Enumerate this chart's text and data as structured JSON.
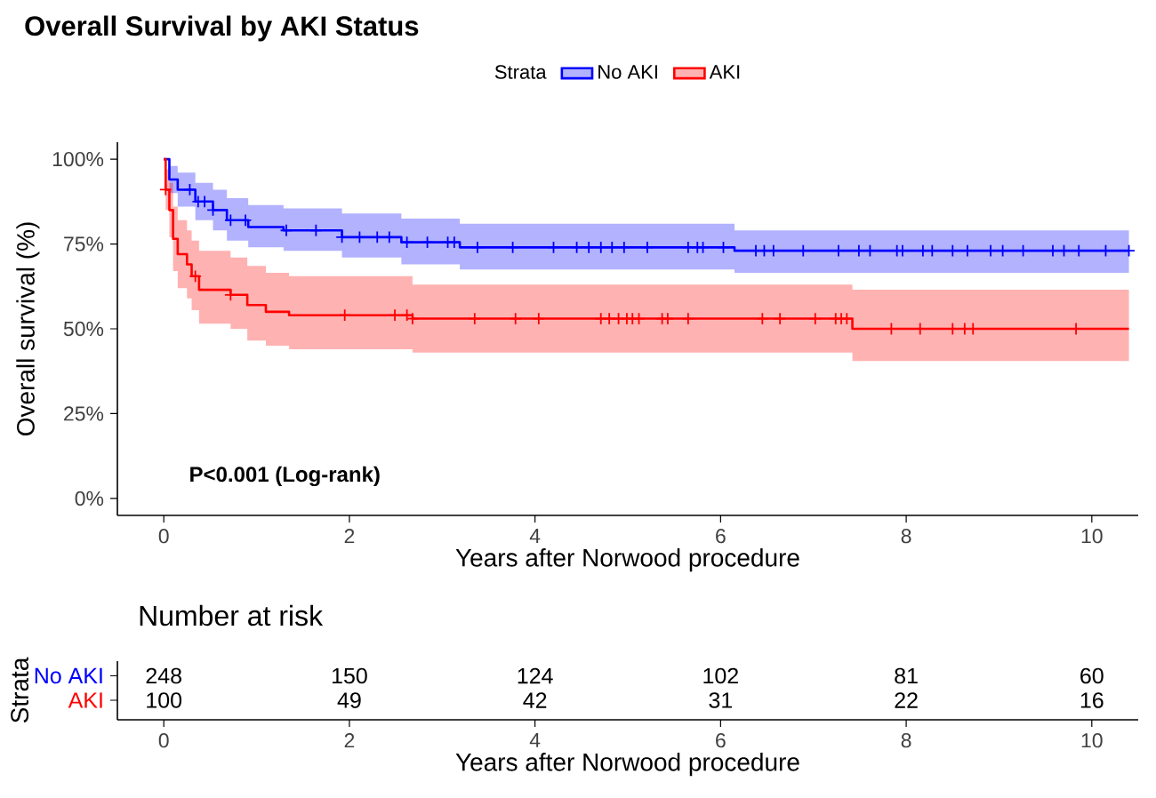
{
  "chart_data": [
    {
      "type": "step",
      "title": "Overall Survival by AKI Status",
      "xlabel": "Years after Norwood procedure",
      "ylabel": "Overall survival (%)",
      "legend_title": "Strata",
      "legend": "top",
      "xlim": [
        -0.5,
        10.5
      ],
      "xticks": [
        0,
        2,
        4,
        6,
        8,
        10
      ],
      "ylim": [
        -5,
        105
      ],
      "yticks": [
        {
          "value": 0,
          "label": "0%"
        },
        {
          "value": 25,
          "label": "25%"
        },
        {
          "value": 50,
          "label": "50%"
        },
        {
          "value": 75,
          "label": "75%"
        },
        {
          "value": 100,
          "label": "100%"
        }
      ],
      "annotations": [
        "P<0.001 (Log-rank)"
      ],
      "series": [
        {
          "name": "No AKI",
          "color": "#0000ff",
          "x": [
            0,
            0.06,
            0.15,
            0.34,
            0.53,
            0.68,
            0.91,
            1.29,
            1.92,
            2.56,
            3.19,
            6.15,
            10.4
          ],
          "values": [
            100,
            94,
            91,
            87.5,
            85,
            82,
            80,
            79,
            77,
            75.5,
            74,
            73,
            73
          ],
          "upper": [
            100,
            98,
            96,
            93,
            91,
            88.5,
            86.5,
            85.5,
            84,
            82.5,
            81,
            79,
            79
          ],
          "lower": [
            100,
            90,
            86,
            82,
            79,
            76,
            74,
            73,
            71,
            69,
            67.5,
            66.5,
            66.5
          ]
        },
        {
          "name": "AKI",
          "color": "#ff0000",
          "x": [
            0,
            0.02,
            0.06,
            0.1,
            0.15,
            0.25,
            0.3,
            0.38,
            0.72,
            0.9,
            1.1,
            1.35,
            2.68,
            7.42,
            10.4
          ],
          "values": [
            100,
            91,
            85,
            76.5,
            72,
            69,
            65.5,
            61.5,
            60,
            57,
            55,
            54,
            53,
            50,
            50
          ],
          "upper": [
            100,
            97,
            93,
            86,
            82,
            79,
            76,
            73,
            71,
            68.5,
            66.5,
            65.5,
            63,
            61.5,
            61.5
          ],
          "lower": [
            100,
            85,
            77,
            67,
            62,
            59,
            55.5,
            51.5,
            50,
            46.5,
            45,
            44,
            43,
            40.5,
            40.5
          ]
        },
        {
          "type": "scatter",
          "marker": "cross",
          "color": "#0000ff",
          "x": [
            0.28,
            0.37,
            0.44,
            0.53,
            0.72,
            0.88,
            1.32,
            1.64,
            1.92,
            2.11,
            2.3,
            2.43,
            2.62,
            2.84,
            3.06,
            3.13,
            3.38,
            3.76,
            4.2,
            4.45,
            4.58,
            4.71,
            4.83,
            4.96,
            5.21,
            5.65,
            5.75,
            5.81,
            6.03,
            6.38,
            6.47,
            6.57,
            6.89,
            7.27,
            7.49,
            7.61,
            7.9,
            7.96,
            8.18,
            8.28,
            8.5,
            8.66,
            8.91,
            9.04,
            9.26,
            9.58,
            9.7,
            9.86,
            10.15,
            10.4
          ],
          "values": [
            91,
            87.5,
            87.5,
            85,
            82,
            82,
            79,
            79,
            77,
            77,
            77,
            77,
            75.5,
            75.5,
            75.5,
            75.5,
            74,
            74,
            74,
            74,
            74,
            74,
            74,
            74,
            74,
            74,
            74,
            74,
            74,
            73,
            73,
            73,
            73,
            73,
            73,
            73,
            73,
            73,
            73,
            73,
            73,
            73,
            73,
            73,
            73,
            73,
            73,
            73,
            73,
            73
          ]
        },
        {
          "type": "scatter",
          "marker": "cross",
          "color": "#ff0000",
          "x": [
            0.02,
            0.34,
            0.72,
            1.95,
            2.49,
            2.62,
            2.68,
            3.35,
            3.79,
            4.04,
            4.71,
            4.8,
            4.9,
            4.99,
            5.05,
            5.12,
            5.37,
            5.43,
            5.65,
            6.45,
            6.64,
            7.02,
            7.24,
            7.3,
            7.36,
            7.84,
            8.15,
            8.5,
            8.63,
            8.72,
            9.83
          ],
          "values": [
            91,
            65.5,
            60,
            54,
            54,
            54,
            53,
            53,
            53,
            53,
            53,
            53,
            53,
            53,
            53,
            53,
            53,
            53,
            53,
            53,
            53,
            53,
            53,
            53,
            53,
            50,
            50,
            50,
            50,
            50,
            50
          ]
        }
      ]
    },
    {
      "type": "heatmap",
      "title": "Number at risk",
      "ylabel": "Strata",
      "xlabel": "Years after Norwood procedure",
      "categories": [
        "0",
        "2",
        "4",
        "6",
        "8",
        "10"
      ],
      "y_categories": [
        "No AKI",
        "AKI"
      ],
      "colors": [
        "#0000ff",
        "#ff0000"
      ],
      "data_labels": true,
      "cells": [
        [
          248,
          150,
          124,
          102,
          81,
          60
        ],
        [
          100,
          49,
          42,
          31,
          22,
          16
        ]
      ]
    }
  ]
}
